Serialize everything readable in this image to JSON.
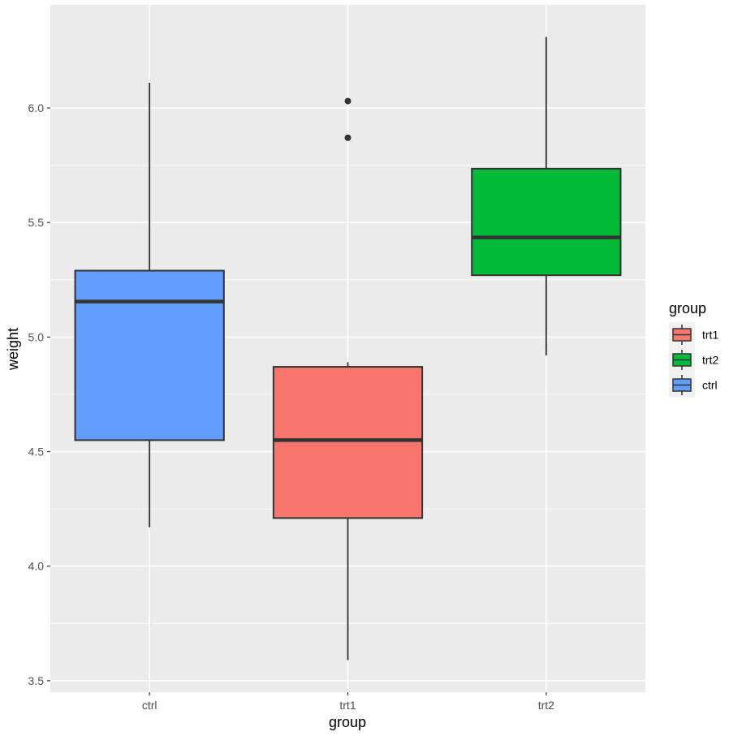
{
  "chart_data": {
    "type": "boxplot",
    "xlabel": "group",
    "ylabel": "weight",
    "categories": [
      "ctrl",
      "trt1",
      "trt2"
    ],
    "ylim": [
      3.45,
      6.45
    ],
    "y_ticks": [
      3.5,
      4.0,
      4.5,
      5.0,
      5.5,
      6.0
    ],
    "y_tick_labels": [
      "3.5",
      "4.0",
      "4.5",
      "5.0",
      "5.5",
      "6.0"
    ],
    "grid": true,
    "legend": {
      "title": "group",
      "position": "right",
      "entries": [
        {
          "label": "trt1",
          "color": "#F8766D"
        },
        {
          "label": "trt2",
          "color": "#00BA38"
        },
        {
          "label": "ctrl",
          "color": "#619CFF"
        }
      ]
    },
    "boxes": [
      {
        "category": "ctrl",
        "color": "#619CFF",
        "min": 4.17,
        "q1": 4.55,
        "median": 5.155,
        "q3": 5.29,
        "max": 6.11,
        "outliers": []
      },
      {
        "category": "trt1",
        "color": "#F8766D",
        "min": 3.59,
        "q1": 4.21,
        "median": 4.55,
        "q3": 4.87,
        "max": 4.89,
        "outliers": [
          5.87,
          6.03
        ]
      },
      {
        "category": "trt2",
        "color": "#00BA38",
        "min": 4.92,
        "q1": 5.27,
        "median": 5.435,
        "q3": 5.735,
        "max": 6.31,
        "outliers": []
      }
    ],
    "colors": {
      "panel_background": "#EBEBEB",
      "grid": "#FFFFFF",
      "box_outline": "#333333"
    }
  }
}
